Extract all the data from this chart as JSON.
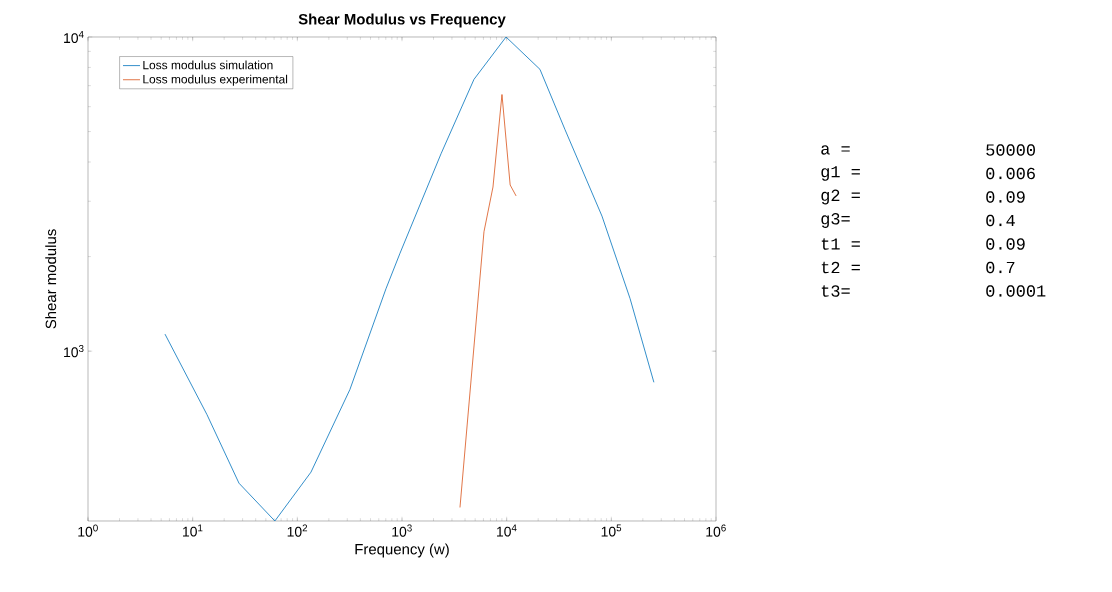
{
  "chart_data": {
    "type": "line",
    "title": "Shear Modulus vs Frequency",
    "xlabel": "Frequency (w)",
    "ylabel": "Shear modulus",
    "log": "xy",
    "grid": false,
    "legend": "top left",
    "line_style": "solid",
    "marker": "none",
    "xlim": [
      1,
      1000000
    ],
    "ylim": [
      288,
      10000
    ],
    "xticks": [
      {
        "value": 1,
        "label": "10$^{0}$"
      },
      {
        "value": 10,
        "label": "10$^{1}$"
      },
      {
        "value": 100,
        "label": "10$^{2}$"
      },
      {
        "value": 1000,
        "label": "10$^{3}$"
      },
      {
        "value": 10000,
        "label": "10$^{4}$"
      },
      {
        "value": 100000,
        "label": "10$^{5}$"
      },
      {
        "value": 1000000,
        "label": "10$^{6}$"
      }
    ],
    "yticks": [
      {
        "value": 1000,
        "label": "10$^{3}$"
      },
      {
        "value": 10000,
        "label": "10$^{4}$"
      }
    ],
    "series": [
      {
        "name": "Loss modulus simulation",
        "color": "#0072bd",
        "x": [
          5.44,
          13.7,
          27.7,
          61,
          135,
          318,
          703,
          957,
          2360,
          4870,
          9860,
          20800,
          36100,
          81400,
          151000,
          255000
        ],
        "values": [
          1133,
          628,
          380,
          288,
          412,
          755,
          1580,
          2050,
          4250,
          7330,
          10000,
          7890,
          5070,
          2690,
          1470,
          796
        ]
      },
      {
        "name": "Loss modulus experimental",
        "color": "#d95319",
        "x": [
          3580,
          6070,
          7400,
          9020,
          10800,
          12300
        ],
        "values": [
          318,
          2400,
          3330,
          6560,
          3380,
          3120
        ]
      }
    ],
    "annotations": [
      "a =",
      "50000",
      "g1 =",
      "0.006",
      "g2 =",
      "0.09",
      "g3=",
      "0.4",
      "t1 =",
      "0.09",
      "t2 =",
      "0.7",
      "t3=",
      "0.0001"
    ]
  }
}
